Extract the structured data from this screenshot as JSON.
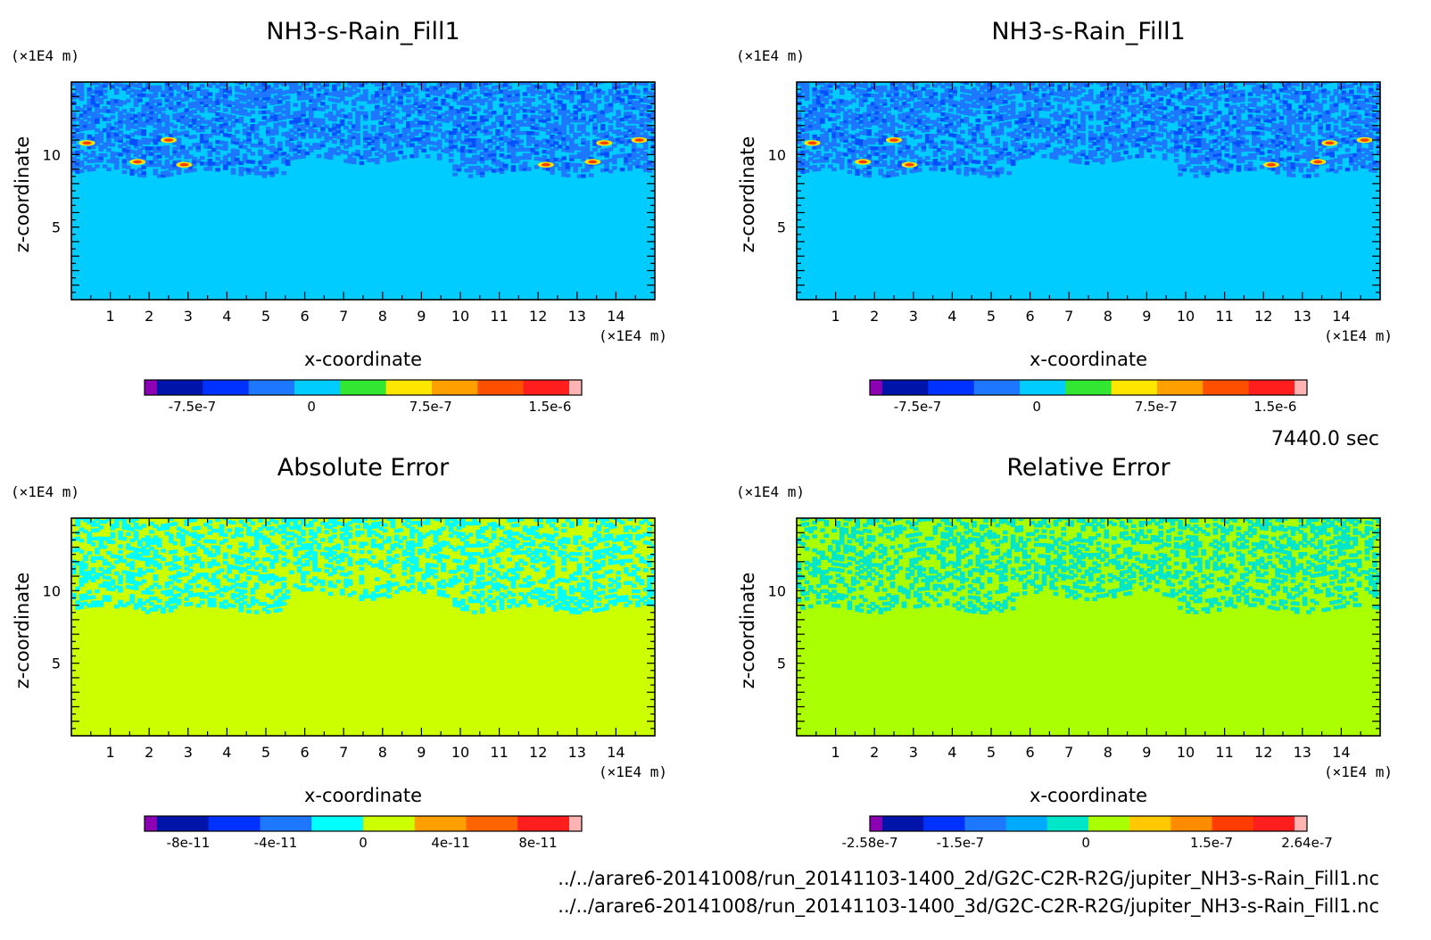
{
  "time_label": "7440.0 sec",
  "file_paths": [
    "../../arare6-20141008/run_20141103-1400_2d/G2C-C2R-R2G/jupiter_NH3-s-Rain_Fill1.nc",
    "../../arare6-20141008/run_20141103-1400_3d/G2C-C2R-R2G/jupiter_NH3-s-Rain_Fill1.nc"
  ],
  "chart_data": [
    {
      "type": "heatmap",
      "title": "NH3-s-Rain_Fill1",
      "xlabel": "x-coordinate",
      "ylabel": "z-coordinate",
      "x_unit": "(×1E4 m)",
      "y_unit": "(×1E4 m)",
      "xlim": [
        0,
        15
      ],
      "ylim": [
        0,
        15
      ],
      "x_ticks": [
        1,
        2,
        3,
        4,
        5,
        6,
        7,
        8,
        9,
        10,
        11,
        12,
        13,
        14
      ],
      "y_ticks": [
        5,
        10
      ],
      "base_color": "#00ccff",
      "pattern_color": "#1e78ff",
      "secondary_color": "#0050ff",
      "hotspot_color": "#ff3c00",
      "colorbar": {
        "colors": [
          "#8c00b4",
          "#0014aa",
          "#0032ff",
          "#1e78ff",
          "#00ccff",
          "#32e632",
          "#ffe600",
          "#ffa000",
          "#ff5000",
          "#ff1e1e",
          "#ffb4b4"
        ],
        "labels": [
          "-7.5e-7",
          "0",
          "7.5e-7",
          "1.5e-6"
        ],
        "label_values": [
          -7.5e-07,
          0,
          7.5e-07,
          1.5e-06
        ],
        "range": [
          -1.05e-06,
          1.7e-06
        ]
      }
    },
    {
      "type": "heatmap",
      "title": "NH3-s-Rain_Fill1",
      "xlabel": "x-coordinate",
      "ylabel": "z-coordinate",
      "x_unit": "(×1E4 m)",
      "y_unit": "(×1E4 m)",
      "xlim": [
        0,
        15
      ],
      "ylim": [
        0,
        15
      ],
      "x_ticks": [
        1,
        2,
        3,
        4,
        5,
        6,
        7,
        8,
        9,
        10,
        11,
        12,
        13,
        14
      ],
      "y_ticks": [
        5,
        10
      ],
      "base_color": "#00ccff",
      "pattern_color": "#1e78ff",
      "secondary_color": "#0050ff",
      "hotspot_color": "#ff3c00",
      "colorbar": {
        "colors": [
          "#8c00b4",
          "#0014aa",
          "#0032ff",
          "#1e78ff",
          "#00ccff",
          "#32e632",
          "#ffe600",
          "#ffa000",
          "#ff5000",
          "#ff1e1e",
          "#ffb4b4"
        ],
        "labels": [
          "-7.5e-7",
          "0",
          "7.5e-7",
          "1.5e-6"
        ],
        "label_values": [
          -7.5e-07,
          0,
          7.5e-07,
          1.5e-06
        ],
        "range": [
          -1.05e-06,
          1.7e-06
        ]
      }
    },
    {
      "type": "heatmap",
      "title": "Absolute Error",
      "xlabel": "x-coordinate",
      "ylabel": "z-coordinate",
      "x_unit": "(×1E4 m)",
      "y_unit": "(×1E4 m)",
      "xlim": [
        0,
        15
      ],
      "ylim": [
        0,
        15
      ],
      "x_ticks": [
        1,
        2,
        3,
        4,
        5,
        6,
        7,
        8,
        9,
        10,
        11,
        12,
        13,
        14
      ],
      "y_ticks": [
        5,
        10
      ],
      "base_color": "#ccff00",
      "pattern_color": "#00ffff",
      "secondary_color": "#00ffff",
      "hotspot_color": "",
      "colorbar": {
        "colors": [
          "#8c00b4",
          "#0014aa",
          "#0032ff",
          "#1e78ff",
          "#00ffff",
          "#ccff00",
          "#ffa000",
          "#ff6400",
          "#ff1e1e",
          "#ffb4b4"
        ],
        "labels": [
          "-8e-11",
          "-4e-11",
          "0",
          "4e-11",
          "8e-11"
        ],
        "label_values": [
          -8e-11,
          -4e-11,
          0,
          4e-11,
          8e-11
        ],
        "range": [
          -1e-10,
          1e-10
        ]
      }
    },
    {
      "type": "heatmap",
      "title": "Relative Error",
      "xlabel": "x-coordinate",
      "ylabel": "z-coordinate",
      "x_unit": "(×1E4 m)",
      "y_unit": "(×1E4 m)",
      "xlim": [
        0,
        15
      ],
      "ylim": [
        0,
        15
      ],
      "x_ticks": [
        1,
        2,
        3,
        4,
        5,
        6,
        7,
        8,
        9,
        10,
        11,
        12,
        13,
        14
      ],
      "y_ticks": [
        5,
        10
      ],
      "base_color": "#aaff00",
      "pattern_color": "#00e6c8",
      "secondary_color": "#00e6c8",
      "hotspot_color": "",
      "colorbar": {
        "colors": [
          "#8c00b4",
          "#0014aa",
          "#0032ff",
          "#1e78ff",
          "#00aaff",
          "#00e6c8",
          "#aaff00",
          "#ffc800",
          "#ff8c00",
          "#ff3c00",
          "#ff1e1e",
          "#ffb4b4"
        ],
        "labels": [
          "-2.58e-7",
          "-1.5e-7",
          "0",
          "1.5e-7",
          "2.64e-7"
        ],
        "label_values": [
          -2.58e-07,
          -1.5e-07,
          0,
          1.5e-07,
          2.64e-07
        ],
        "range": [
          -2.58e-07,
          2.64e-07
        ]
      }
    }
  ]
}
